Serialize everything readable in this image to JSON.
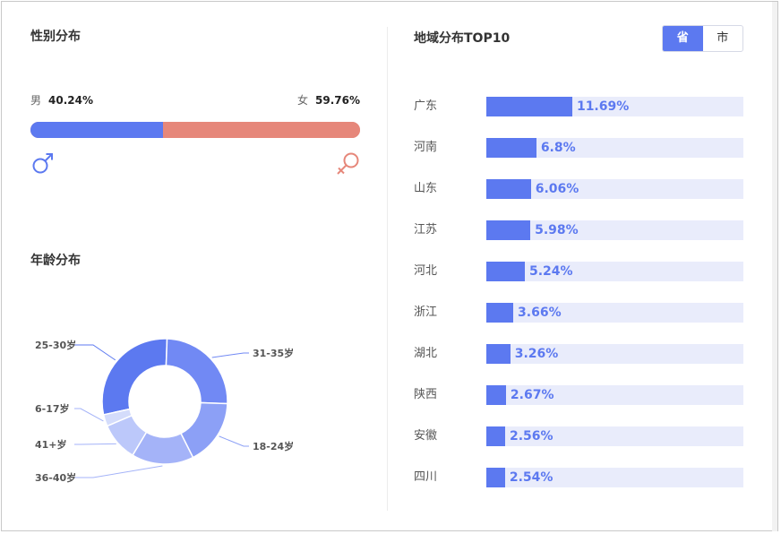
{
  "gender": {
    "title": "性别分布",
    "male_label": "男",
    "male_value": "40.24%",
    "male_share": 40.24,
    "female_label": "女",
    "female_value": "59.76%",
    "female_share": 59.76,
    "male_icon": "male-symbol-icon",
    "female_icon": "female-symbol-icon",
    "male_color": "#5c79f0",
    "female_color": "#e6877a"
  },
  "age": {
    "title": "年龄分布"
  },
  "region": {
    "title": "地域分布TOP10",
    "toggle": {
      "province": "省",
      "city": "市",
      "active": "province"
    }
  },
  "chart_data": [
    {
      "type": "pie",
      "title": "年龄分布",
      "donut": true,
      "categories": [
        "25-30岁",
        "31-35岁",
        "18-24岁",
        "36-40岁",
        "41+岁",
        "6-17岁"
      ],
      "values": [
        29,
        25,
        17,
        16,
        10,
        3
      ],
      "colors": [
        "#5c79f0",
        "#7189f4",
        "#8ca0f6",
        "#a4b3f8",
        "#bcc8fa",
        "#d4dcfb"
      ]
    },
    {
      "type": "bar",
      "orientation": "horizontal",
      "title": "地域分布TOP10",
      "categories": [
        "广东",
        "河南",
        "山东",
        "江苏",
        "河北",
        "浙江",
        "湖北",
        "陕西",
        "安徽",
        "四川"
      ],
      "values": [
        11.69,
        6.8,
        6.06,
        5.98,
        5.24,
        3.66,
        3.26,
        2.67,
        2.56,
        2.54
      ],
      "labels": [
        "11.69%",
        "6.8%",
        "6.06%",
        "5.98%",
        "5.24%",
        "3.66%",
        "3.26%",
        "2.67%",
        "2.56%",
        "2.54%"
      ],
      "xlim": [
        0,
        100
      ],
      "bar_color": "#5c79f0",
      "track_color": "#e9ecfb"
    }
  ]
}
